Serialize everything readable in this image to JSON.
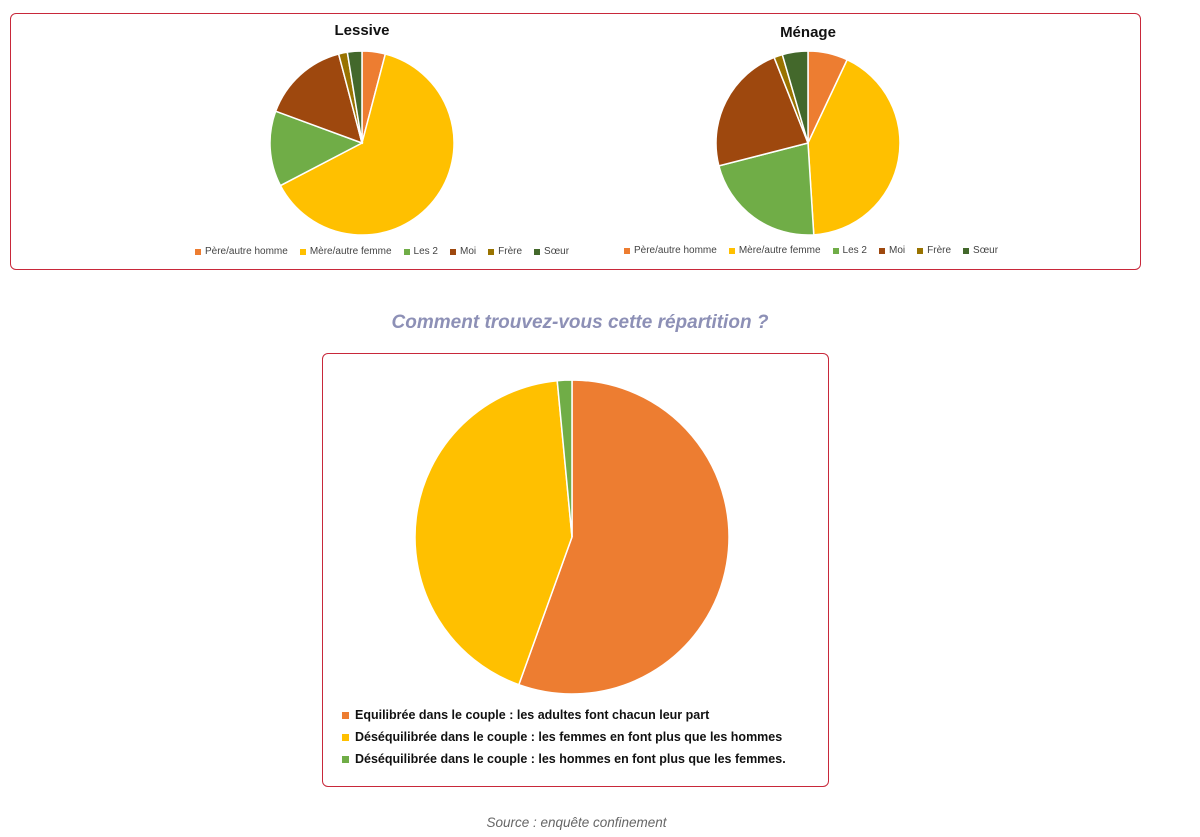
{
  "chart_data": [
    {
      "type": "pie",
      "title": "Lessive",
      "categories": [
        "Père/autre homme",
        "Mère/autre femme",
        "Les 2",
        "Moi",
        "Frère",
        "Sœur"
      ],
      "values": [
        4,
        62,
        13,
        15,
        1.5,
        2.5
      ],
      "colors": [
        "#ed7d31",
        "#ffc000",
        "#70ad47",
        "#9e480e",
        "#997300",
        "#43682b"
      ]
    },
    {
      "type": "pie",
      "title": "Ménage",
      "categories": [
        "Père/autre homme",
        "Mère/autre femme",
        "Les 2",
        "Moi",
        "Frère",
        "Sœur"
      ],
      "values": [
        7,
        42,
        22,
        23,
        1.5,
        4.5
      ],
      "colors": [
        "#ed7d31",
        "#ffc000",
        "#70ad47",
        "#9e480e",
        "#997300",
        "#43682b"
      ]
    },
    {
      "type": "pie",
      "title": "Comment trouvez-vous cette répartition ?",
      "categories": [
        "Equilibrée dans le couple : les adultes font chacun leur part",
        "Déséquilibrée dans le couple : les femmes en font plus que les hommes",
        "Déséquilibrée dans le couple : les hommes en font plus que les femmes."
      ],
      "values": [
        55.5,
        43,
        1.5
      ],
      "colors": [
        "#ed7d31",
        "#ffc000",
        "#70ad47"
      ]
    }
  ],
  "source": "Source : enquête confinement"
}
